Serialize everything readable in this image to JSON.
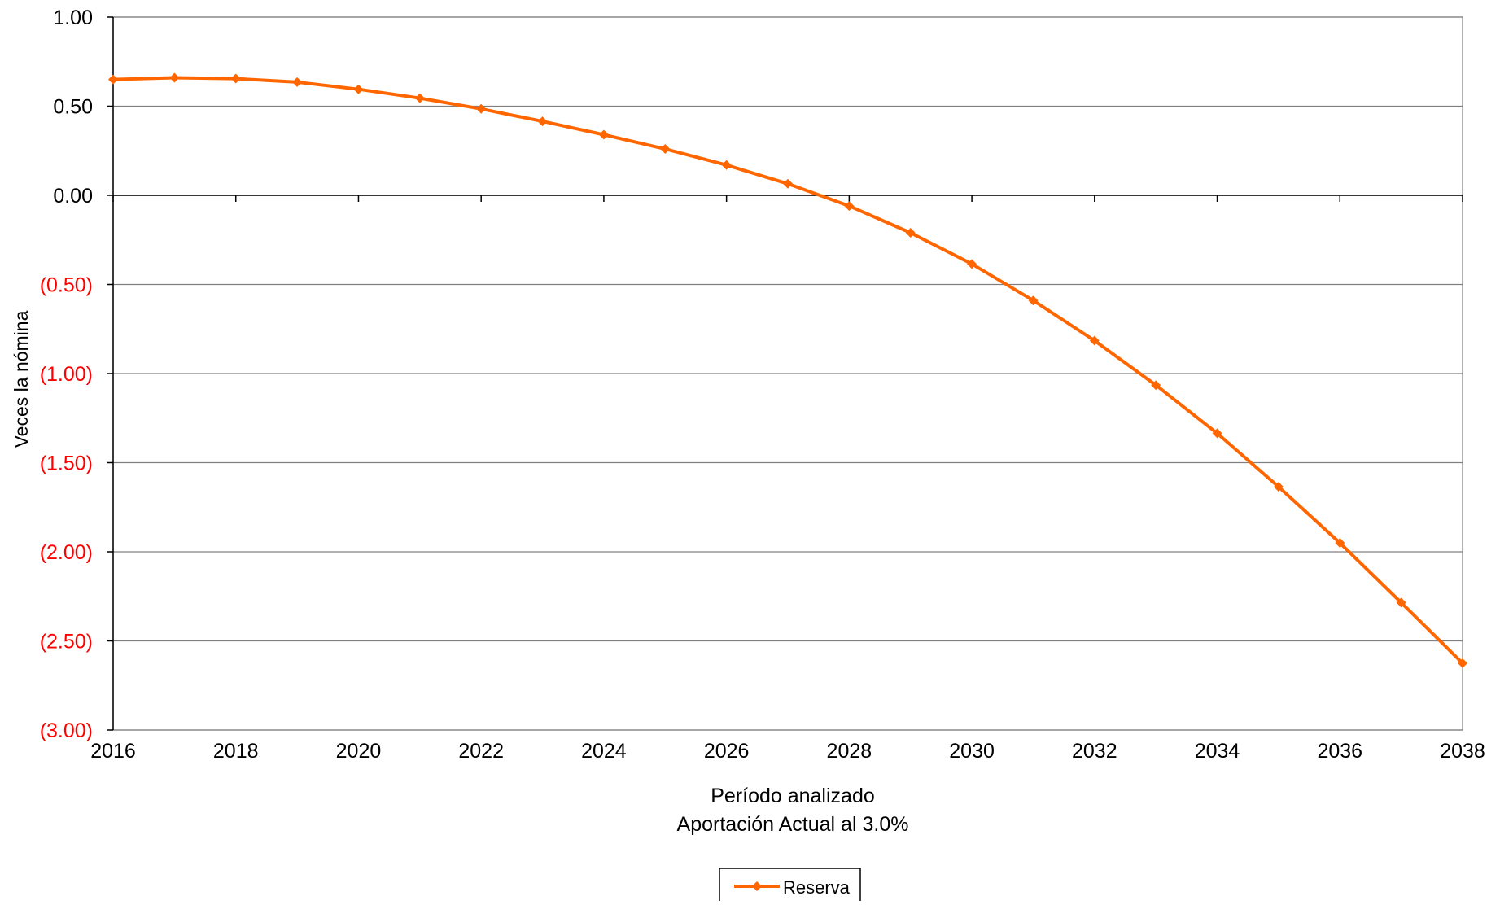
{
  "chart_data": {
    "type": "line",
    "title": "",
    "xlabel_line1": "Período analizado",
    "xlabel_line2": "Aportación Actual al 3.0%",
    "ylabel": "Veces la nómina",
    "x": [
      2016,
      2017,
      2018,
      2019,
      2020,
      2021,
      2022,
      2023,
      2024,
      2025,
      2026,
      2027,
      2028,
      2029,
      2030,
      2031,
      2032,
      2033,
      2034,
      2035,
      2036,
      2037,
      2038
    ],
    "series": [
      {
        "name": "Reserva",
        "color": "#ff6600",
        "marker": "diamond",
        "values": [
          0.65,
          0.66,
          0.655,
          0.635,
          0.595,
          0.545,
          0.485,
          0.415,
          0.34,
          0.26,
          0.17,
          0.065,
          -0.06,
          -0.21,
          -0.385,
          -0.59,
          -0.815,
          -1.065,
          -1.335,
          -1.635,
          -1.95,
          -2.285,
          -2.625
        ]
      }
    ],
    "xticks": [
      2016,
      2018,
      2020,
      2022,
      2024,
      2026,
      2028,
      2030,
      2032,
      2034,
      2036,
      2038
    ],
    "xtick_labels": [
      "2016",
      "2018",
      "2020",
      "2022",
      "2024",
      "2026",
      "2028",
      "2030",
      "2032",
      "2034",
      "2036",
      "2038"
    ],
    "yticks": [
      1.0,
      0.5,
      0.0,
      -0.5,
      -1.0,
      -1.5,
      -2.0,
      -2.5,
      -3.0
    ],
    "ytick_labels": [
      "1.00",
      "0.50",
      "0.00",
      "(0.50)",
      "(1.00)",
      "(1.50)",
      "(2.00)",
      "(2.50)",
      "(3.00)"
    ],
    "negative_label_color": "#ff0000",
    "positive_label_color": "#000000",
    "ylim": [
      -3.0,
      1.0
    ],
    "xlim": [
      2016,
      2038
    ],
    "grid": true,
    "legend_position": "bottom-center"
  }
}
